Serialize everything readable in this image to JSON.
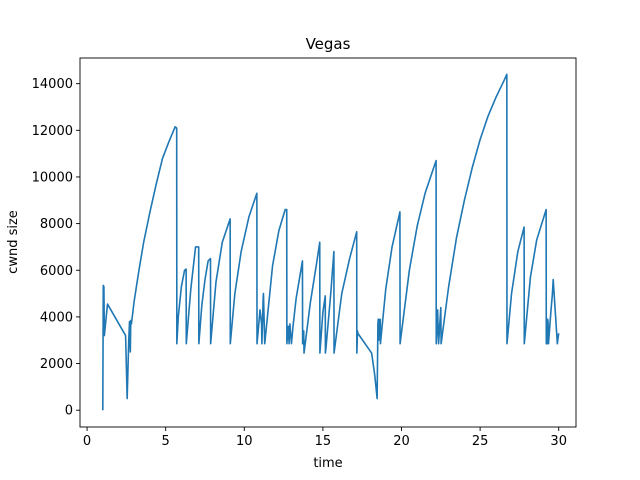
{
  "chart_data": {
    "type": "line",
    "title": "Vegas",
    "xlabel": "time",
    "ylabel": "cwnd size",
    "xlim": [
      -0.45,
      31.1
    ],
    "ylim": [
      -720,
      15100
    ],
    "x_ticks": [
      0,
      5,
      10,
      15,
      20,
      25,
      30
    ],
    "y_ticks": [
      0,
      2000,
      4000,
      6000,
      8000,
      10000,
      12000,
      14000
    ],
    "grid": false,
    "legend": "none",
    "color": "#1f77b4",
    "series": [
      {
        "x": [
          1.0,
          1.03,
          1.07,
          1.1,
          1.3,
          2.45,
          2.55,
          2.65,
          2.7,
          2.75,
          2.78,
          2.82,
          3.0,
          3.3,
          3.6,
          4.0,
          4.4,
          4.8,
          5.2,
          5.6,
          5.7,
          5.71,
          5.8,
          6.0,
          6.2,
          6.3,
          6.31,
          6.6,
          6.9,
          7.1,
          7.11,
          7.3,
          7.5,
          7.7,
          7.85,
          7.86,
          8.2,
          8.6,
          9.1,
          9.11,
          9.4,
          9.8,
          10.3,
          10.8,
          10.81,
          11.0,
          11.1,
          11.12,
          11.2,
          11.22,
          11.3,
          11.8,
          12.2,
          12.6,
          12.7,
          12.71,
          12.8,
          12.85,
          12.9,
          13.0,
          13.1,
          13.3,
          13.7,
          13.71,
          13.75,
          13.76,
          13.78,
          13.8,
          14.2,
          14.6,
          14.8,
          14.81,
          15.0,
          15.15,
          15.16,
          15.2,
          15.5,
          15.7,
          15.71,
          16.2,
          16.7,
          17.15,
          17.16,
          17.2,
          17.22,
          18.1,
          18.3,
          18.45,
          18.5,
          18.52,
          18.55,
          18.57,
          18.6,
          18.65,
          18.66,
          19.0,
          19.4,
          19.9,
          19.91,
          20.5,
          21.0,
          21.5,
          22.2,
          22.21,
          22.3,
          22.35,
          22.36,
          22.5,
          22.52,
          23.0,
          23.5,
          24.0,
          24.5,
          25.0,
          25.5,
          26.0,
          26.5,
          26.7,
          26.71,
          27.0,
          27.4,
          27.8,
          27.81,
          28.2,
          28.6,
          29.2,
          29.21,
          29.25,
          29.26,
          29.3,
          29.32,
          29.33,
          29.35,
          29.5,
          29.6,
          29.65,
          29.9,
          29.91,
          30.0
        ],
        "values": [
          0,
          5350,
          5300,
          3200,
          4550,
          3200,
          500,
          3000,
          3800,
          2500,
          3850,
          3700,
          4700,
          6000,
          7200,
          8500,
          9700,
          10800,
          11500,
          12150,
          12100,
          2850,
          4000,
          5300,
          6000,
          6050,
          2850,
          5200,
          7000,
          7000,
          2850,
          4500,
          5600,
          6400,
          6500,
          2850,
          5500,
          7200,
          8200,
          2850,
          5000,
          6800,
          8300,
          9300,
          2850,
          4300,
          3700,
          2850,
          4800,
          5000,
          2850,
          6200,
          7700,
          8600,
          8600,
          2850,
          3600,
          2850,
          3700,
          2850,
          3600,
          4800,
          6400,
          2850,
          3400,
          2850,
          3400,
          2450,
          4600,
          6300,
          7200,
          2450,
          4200,
          4900,
          2450,
          2700,
          5000,
          6800,
          2450,
          5000,
          6500,
          7650,
          2450,
          3400,
          3300,
          2450,
          1500,
          500,
          3700,
          3900,
          3000,
          3900,
          3300,
          3900,
          2850,
          5200,
          7000,
          8500,
          2850,
          6000,
          7900,
          9300,
          10700,
          2850,
          4300,
          3000,
          2850,
          4400,
          2850,
          5300,
          7400,
          9000,
          10400,
          11600,
          12600,
          13400,
          14100,
          14400,
          2850,
          5000,
          6800,
          7850,
          2850,
          5700,
          7300,
          8600,
          2850,
          3900,
          2850,
          3900,
          3800,
          3600,
          2850,
          4200,
          5000,
          5600,
          3000,
          2850,
          3300
        ]
      }
    ]
  }
}
